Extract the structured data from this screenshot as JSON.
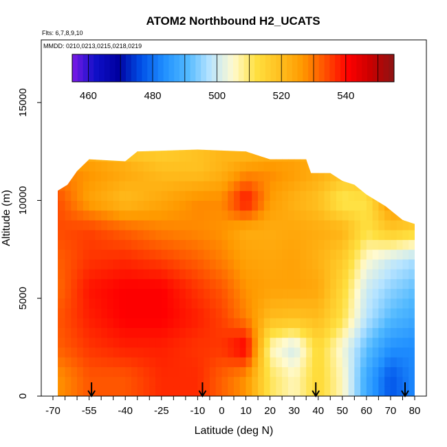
{
  "chart_data": {
    "type": "heatmap",
    "title": "ATOM2 Northbound H2_UCATS",
    "notes": {
      "flights": "Flts: 6,7,8,9,10",
      "dates": "MMDD: 0210,0213,0215,0218,0219"
    },
    "xlabel": "Latitude (deg N)",
    "ylabel": "Altitude (m)",
    "xlim": [
      -70,
      80
    ],
    "ylim": [
      0,
      17500
    ],
    "x_ticks": [
      -70,
      -55,
      -40,
      -25,
      -10,
      0,
      10,
      20,
      30,
      40,
      50,
      60,
      70,
      80
    ],
    "y_ticks": [
      0,
      5000,
      10000,
      15000
    ],
    "colorbar": {
      "range": [
        455,
        555
      ],
      "tick_values": [
        460,
        480,
        500,
        520,
        540
      ],
      "colors": [
        "#7a1ae6",
        "#1010c8",
        "#0000a0",
        "#0050e8",
        "#2090ff",
        "#50b8ff",
        "#b8e4ff",
        "#fffad0",
        "#ffe040",
        "#ffc020",
        "#ff9a00",
        "#ff5000",
        "#ff0000",
        "#c80000",
        "#8c1414"
      ]
    },
    "arrow_latitudes": [
      -54,
      -8,
      39,
      76
    ],
    "profile_ceiling": [
      [
        -68,
        10500
      ],
      [
        -64,
        10800
      ],
      [
        -60,
        11500
      ],
      [
        -55,
        12100
      ],
      [
        -40,
        12000
      ],
      [
        -35,
        12500
      ],
      [
        -10,
        12600
      ],
      [
        10,
        12500
      ],
      [
        20,
        12100
      ],
      [
        35,
        12100
      ],
      [
        37,
        11400
      ],
      [
        45,
        11400
      ],
      [
        50,
        11000
      ],
      [
        55,
        10800
      ],
      [
        60,
        10300
      ],
      [
        68,
        9700
      ],
      [
        75,
        9000
      ],
      [
        80,
        8800
      ]
    ],
    "h2_field_ppb": [
      [
        -68,
        1000,
        527
      ],
      [
        -55,
        1000,
        533
      ],
      [
        -40,
        1000,
        533
      ],
      [
        -25,
        1000,
        537
      ],
      [
        -10,
        1000,
        537
      ],
      [
        0,
        1000,
        532
      ],
      [
        10,
        1000,
        527
      ],
      [
        20,
        1000,
        511
      ],
      [
        30,
        1000,
        506
      ],
      [
        40,
        1000,
        514
      ],
      [
        50,
        1000,
        506
      ],
      [
        60,
        1000,
        488
      ],
      [
        70,
        1000,
        477
      ],
      [
        80,
        1000,
        483
      ],
      [
        -68,
        2500,
        532
      ],
      [
        -55,
        2500,
        536
      ],
      [
        -40,
        2500,
        538
      ],
      [
        -25,
        2500,
        538
      ],
      [
        -10,
        2500,
        536
      ],
      [
        0,
        2500,
        536
      ],
      [
        10,
        2500,
        542
      ],
      [
        20,
        2500,
        506
      ],
      [
        30,
        2500,
        500
      ],
      [
        40,
        2500,
        514
      ],
      [
        50,
        2500,
        504
      ],
      [
        60,
        2500,
        492
      ],
      [
        70,
        2500,
        484
      ],
      [
        80,
        2500,
        483
      ],
      [
        -68,
        4000,
        533
      ],
      [
        -55,
        4000,
        538
      ],
      [
        -40,
        4000,
        541
      ],
      [
        -25,
        4000,
        541
      ],
      [
        -10,
        4000,
        538
      ],
      [
        0,
        4000,
        535
      ],
      [
        10,
        4000,
        529
      ],
      [
        20,
        4000,
        520
      ],
      [
        30,
        4000,
        519
      ],
      [
        40,
        4000,
        520
      ],
      [
        50,
        4000,
        512
      ],
      [
        60,
        4000,
        498
      ],
      [
        70,
        4000,
        491
      ],
      [
        80,
        4000,
        488
      ],
      [
        -68,
        5500,
        531
      ],
      [
        -55,
        5500,
        539
      ],
      [
        -40,
        5500,
        541
      ],
      [
        -25,
        5500,
        541
      ],
      [
        -10,
        5500,
        536
      ],
      [
        0,
        5500,
        533
      ],
      [
        10,
        5500,
        527
      ],
      [
        20,
        5500,
        525
      ],
      [
        30,
        5500,
        525
      ],
      [
        40,
        5500,
        524
      ],
      [
        50,
        5500,
        514
      ],
      [
        60,
        5500,
        500
      ],
      [
        70,
        5500,
        495
      ],
      [
        80,
        5500,
        492
      ],
      [
        -68,
        7000,
        532
      ],
      [
        -55,
        7000,
        536
      ],
      [
        -40,
        7000,
        537
      ],
      [
        -25,
        7000,
        535
      ],
      [
        -10,
        7000,
        532
      ],
      [
        0,
        7000,
        529
      ],
      [
        10,
        7000,
        525
      ],
      [
        20,
        7000,
        524
      ],
      [
        30,
        7000,
        525
      ],
      [
        40,
        7000,
        522
      ],
      [
        50,
        7000,
        517
      ],
      [
        60,
        7000,
        505
      ],
      [
        70,
        7000,
        500
      ],
      [
        80,
        7000,
        497
      ],
      [
        -68,
        8500,
        534
      ],
      [
        -55,
        8500,
        535
      ],
      [
        -40,
        8500,
        532
      ],
      [
        -25,
        8500,
        529
      ],
      [
        -10,
        8500,
        528
      ],
      [
        0,
        8500,
        527
      ],
      [
        10,
        8500,
        523
      ],
      [
        20,
        8500,
        523
      ],
      [
        30,
        8500,
        524
      ],
      [
        40,
        8500,
        523
      ],
      [
        50,
        8500,
        522
      ],
      [
        60,
        8500,
        512
      ],
      [
        70,
        8500,
        518
      ],
      [
        80,
        8500,
        515
      ],
      [
        -68,
        10000,
        534
      ],
      [
        -55,
        10000,
        525
      ],
      [
        -40,
        10000,
        520
      ],
      [
        -25,
        10000,
        524
      ],
      [
        -10,
        10000,
        528
      ],
      [
        0,
        10000,
        528
      ],
      [
        10,
        10000,
        540
      ],
      [
        20,
        10000,
        526
      ],
      [
        30,
        10000,
        522
      ],
      [
        40,
        10000,
        519
      ],
      [
        50,
        10000,
        510
      ],
      [
        60,
        10000,
        512
      ],
      [
        70,
        10000,
        528
      ],
      [
        80,
        10000,
        526
      ],
      [
        -68,
        11500,
        529
      ],
      [
        -55,
        11500,
        527
      ],
      [
        -40,
        11500,
        524
      ],
      [
        -25,
        11500,
        520
      ],
      [
        -10,
        11500,
        519
      ],
      [
        0,
        11500,
        522
      ],
      [
        10,
        11500,
        527
      ],
      [
        20,
        11500,
        528
      ],
      [
        30,
        11500,
        526
      ],
      [
        40,
        11500,
        523
      ],
      [
        50,
        11500,
        520
      ],
      [
        60,
        11500,
        520
      ],
      [
        70,
        11500,
        524
      ],
      [
        80,
        11500,
        524
      ],
      [
        -68,
        12500,
        521
      ],
      [
        -55,
        12500,
        522
      ],
      [
        -40,
        12500,
        518
      ],
      [
        -25,
        12500,
        516
      ],
      [
        -10,
        12500,
        519
      ],
      [
        0,
        12500,
        521
      ],
      [
        10,
        12500,
        520
      ],
      [
        20,
        12500,
        522
      ],
      [
        30,
        12500,
        523
      ],
      [
        40,
        12500,
        521
      ],
      [
        50,
        12500,
        520
      ],
      [
        60,
        12500,
        520
      ],
      [
        70,
        12500,
        522
      ],
      [
        80,
        12500,
        522
      ]
    ],
    "grid": false,
    "legend": "colorbar top"
  }
}
